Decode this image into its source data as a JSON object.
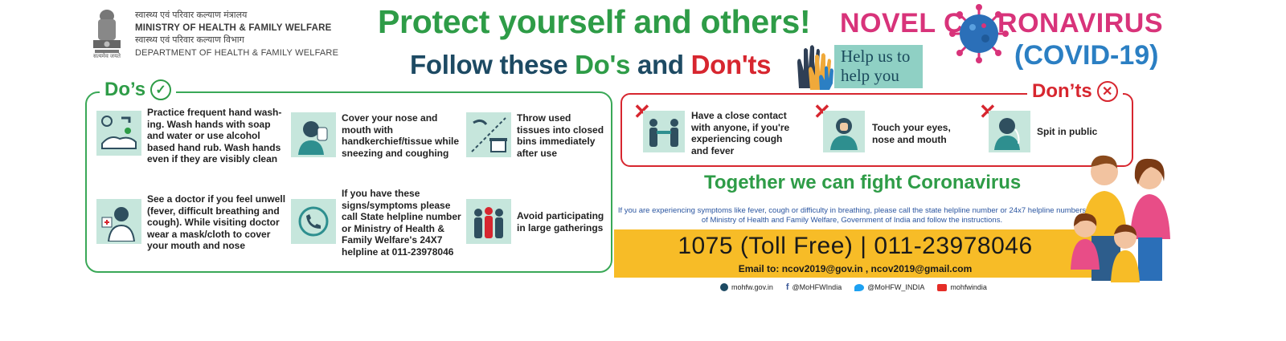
{
  "header": {
    "ministry_hindi": "स्वास्थ्य एवं परिवार कल्याण मंत्रालय",
    "ministry_english": "MINISTRY OF HEALTH & FAMILY WELFARE",
    "department_hindi": "स्वास्थ्य एवं परिवार कल्याण विभाग",
    "department_english": "DEPARTMENT OF HEALTH & FAMILY WELFARE",
    "emblem_motto": "सत्यमेव जयते",
    "headline": "Protect yourself and others!",
    "subline_prefix": "Follow these ",
    "subline_dos": "Do's",
    "subline_and": " and ",
    "subline_donts": "Don'ts",
    "help_line1": "Help us to",
    "help_line2": "help you",
    "novel": "NOVEL C",
    "coronavirus_rest": "RONAVIRUS",
    "covid": "(COVID-19)"
  },
  "dos": {
    "title": "Do’s",
    "items": [
      {
        "icon": "handwash-icon",
        "text": "Practice frequent hand wash-ing. Wash hands with soap and water or use alcohol based hand rub. Wash hands even if they are visibly clean"
      },
      {
        "icon": "cover-face-icon",
        "text": "Cover your nose and mouth with handkerchief/tissue while sneezing and coughing"
      },
      {
        "icon": "bin-icon",
        "text": "Throw used tissues into closed bins immediately after use"
      },
      {
        "icon": "doctor-icon",
        "text": "See a doctor if you feel unwell (fever, difficult breathing and cough). While visiting doctor wear a mask/cloth to cover your mouth and nose"
      },
      {
        "icon": "phone-icon",
        "text": "If you have these signs/symptoms please call State helpline number or Ministry of Health & Family Welfare's 24X7 helpline at 011-23978046"
      },
      {
        "icon": "crowd-icon",
        "text": "Avoid participating in large gatherings"
      }
    ]
  },
  "donts": {
    "title": "Don’ts",
    "items": [
      {
        "icon": "handshake-icon",
        "text": "Have a close contact with anyone, if you're experiencing cough and fever"
      },
      {
        "icon": "touch-face-icon",
        "text": "Touch your eyes, nose and mouth"
      },
      {
        "icon": "spit-icon",
        "text": "Spit in public"
      }
    ]
  },
  "together": "Together we can fight Coronavirus",
  "info": "If you are experiencing symptoms like fever, cough or difficulty in breathing, please call the state helpline number or 24x7 helpline numbers of Ministry of Health and Family Welfare, Government of India and follow the instructions.",
  "helpline": {
    "numbers": "1075 (Toll Free)  | 011-23978046",
    "email": "Email to: ncov2019@gov.in , ncov2019@gmail.com"
  },
  "social": {
    "web": "mohfw.gov.in",
    "facebook": "@MoHFWIndia",
    "twitter": "@MoHFW_INDIA",
    "youtube": "mohfwindia"
  },
  "colors": {
    "green": "#2e9c47",
    "red": "#d7262f",
    "navy": "#1d4a63",
    "pink": "#d8337a",
    "blue": "#2b7fc3",
    "yellow": "#f7bc27",
    "tile": "#c6e6dc"
  }
}
